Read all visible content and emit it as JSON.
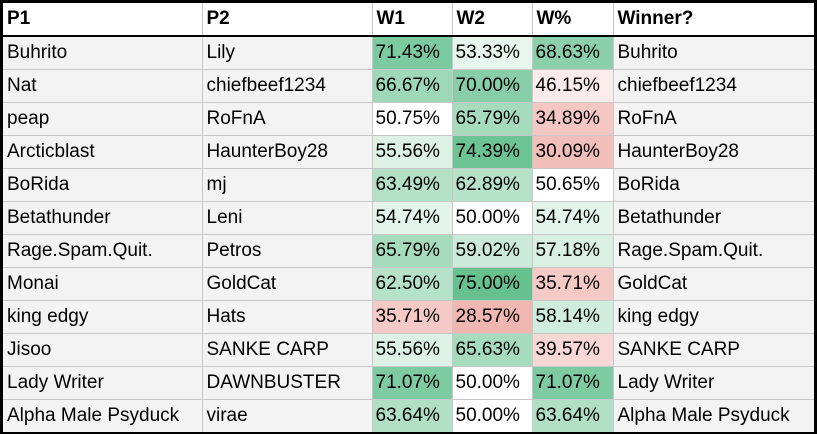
{
  "headers": [
    "P1",
    "P2",
    "W1",
    "W2",
    "W%",
    "Winner?"
  ],
  "rows": [
    {
      "p1": "Buhrito",
      "p2": "Lily",
      "w1": "71.43%",
      "w2": "53.33%",
      "wp": "68.63%",
      "winner": "Buhrito",
      "w1_color": "#7ccaa0",
      "w2_color": "#e8f5ec",
      "wp_color": "#8cd0ab"
    },
    {
      "p1": "Nat",
      "p2": "chiefbeef1234",
      "w1": "66.67%",
      "w2": "70.00%",
      "wp": "46.15%",
      "winner": "chiefbeef1234",
      "w1_color": "#9fd8b8",
      "w2_color": "#88cea8",
      "wp_color": "#fbeceb"
    },
    {
      "p1": "peap",
      "p2": "RoFnA",
      "w1": "50.75%",
      "w2": "65.79%",
      "wp": "34.89%",
      "winner": "RoFnA",
      "w1_color": "#ffffff",
      "w2_color": "#a6dbbd",
      "wp_color": "#f4c7c4"
    },
    {
      "p1": "Arcticblast",
      "p2": "HaunterBoy28",
      "w1": "55.56%",
      "w2": "74.39%",
      "wp": "30.09%",
      "winner": "HaunterBoy28",
      "w1_color": "#ddf1e5",
      "w2_color": "#6cc494",
      "wp_color": "#f2beba"
    },
    {
      "p1": "BoRida",
      "p2": "mj",
      "w1": "63.49%",
      "w2": "62.89%",
      "wp": "50.65%",
      "winner": "BoRida",
      "w1_color": "#b3e0c6",
      "w2_color": "#b7e2ca",
      "wp_color": "#ffffff"
    },
    {
      "p1": "Betathunder",
      "p2": "Leni",
      "w1": "54.74%",
      "w2": "50.00%",
      "wp": "54.74%",
      "winner": "Betathunder",
      "w1_color": "#e3f4ea",
      "w2_color": "#ffffff",
      "wp_color": "#e3f4ea"
    },
    {
      "p1": "Rage.Spam.Quit.",
      "p2": "Petros",
      "w1": "65.79%",
      "w2": "59.02%",
      "wp": "57.18%",
      "winner": "Rage.Spam.Quit.",
      "w1_color": "#a6dbbd",
      "w2_color": "#cbeada",
      "wp_color": "#d8efe2"
    },
    {
      "p1": "Monai",
      "p2": "GoldCat",
      "w1": "62.50%",
      "w2": "75.00%",
      "wp": "35.71%",
      "winner": "GoldCat",
      "w1_color": "#b7e2ca",
      "w2_color": "#66c18f",
      "wp_color": "#f5c9c6"
    },
    {
      "p1": "king edgy",
      "p2": "Hats",
      "w1": "35.71%",
      "w2": "28.57%",
      "wp": "58.14%",
      "winner": "king edgy",
      "w1_color": "#f5c9c6",
      "w2_color": "#f0b6b2",
      "wp_color": "#d0ecdc"
    },
    {
      "p1": "Jisoo",
      "p2": "SANKE CARP",
      "w1": "55.56%",
      "w2": "65.63%",
      "wp": "39.57%",
      "winner": "SANKE CARP",
      "w1_color": "#ddf1e5",
      "w2_color": "#a6dbbd",
      "wp_color": "#f8d8d6"
    },
    {
      "p1": "Lady Writer",
      "p2": "DAWNBUSTER",
      "w1": "71.07%",
      "w2": "50.00%",
      "wp": "71.07%",
      "winner": "Lady Writer",
      "w1_color": "#7ecba1",
      "w2_color": "#ffffff",
      "wp_color": "#7ecba1"
    },
    {
      "p1": "Alpha Male Psyduck",
      "p2": "virae",
      "w1": "63.64%",
      "w2": "50.00%",
      "wp": "63.64%",
      "winner": "Alpha Male Psyduck",
      "w1_color": "#b1dfc5",
      "w2_color": "#ffffff",
      "wp_color": "#b1dfc5"
    }
  ]
}
